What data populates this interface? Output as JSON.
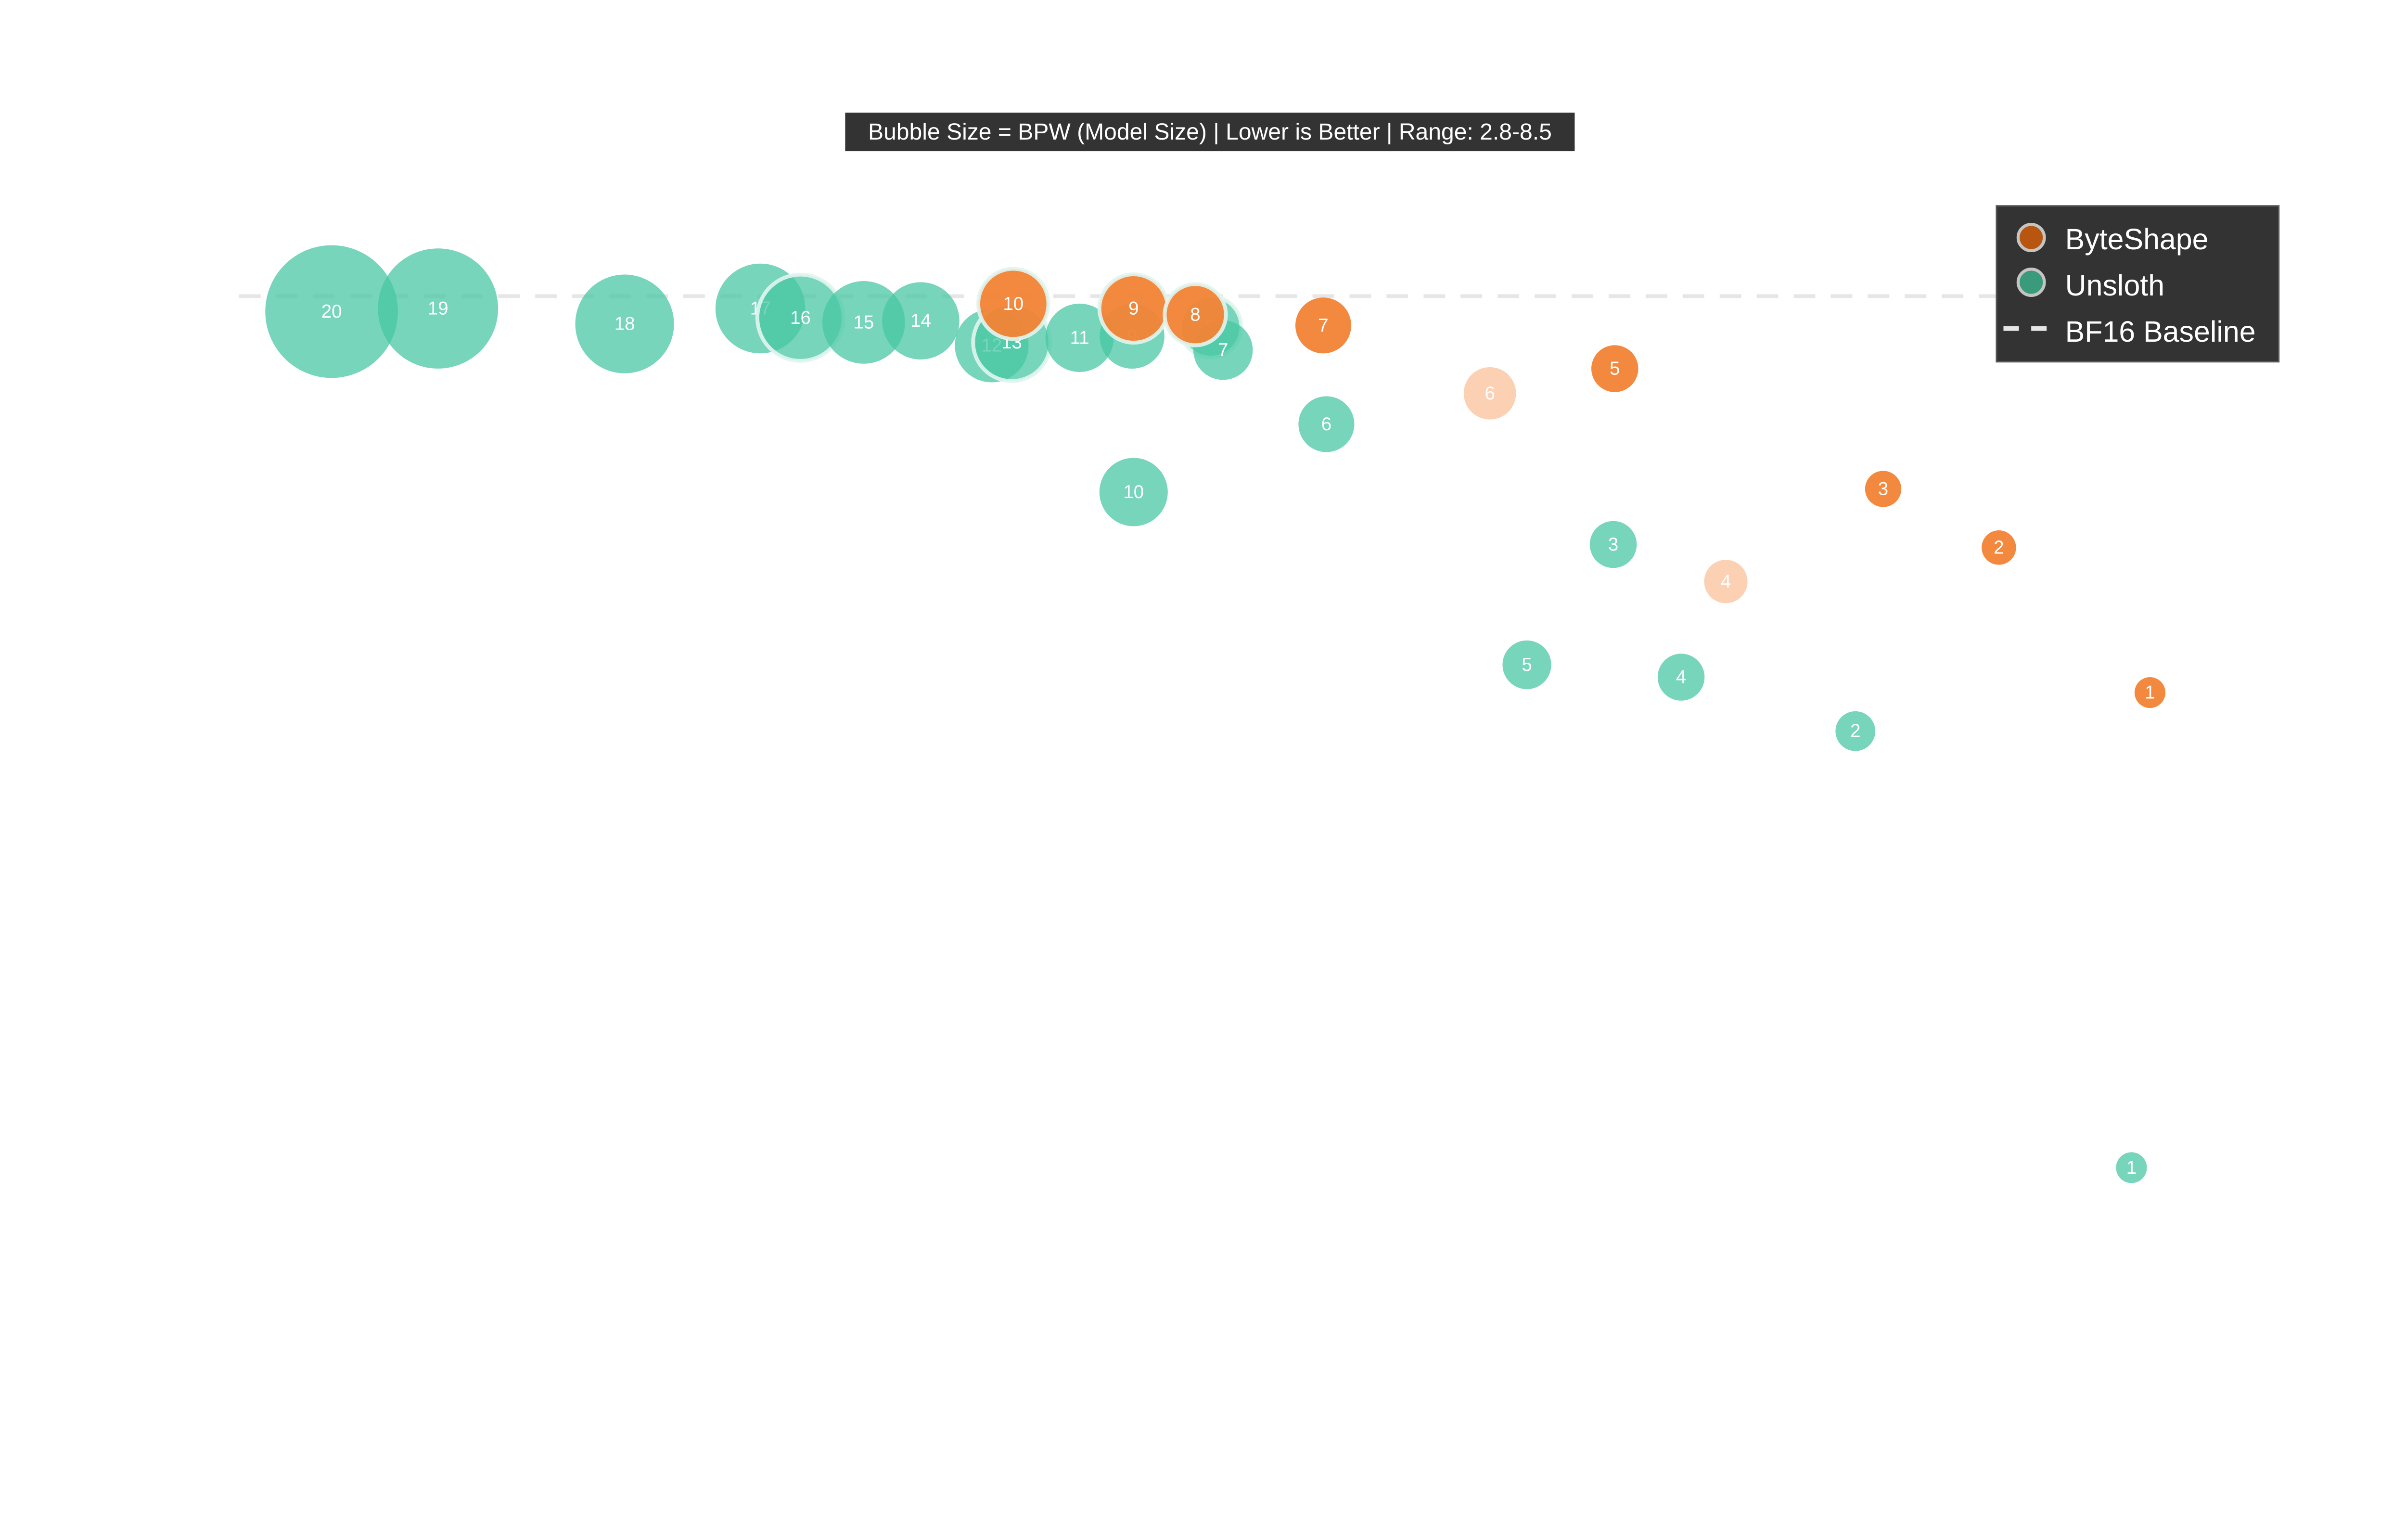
{
  "chart_data": {
    "type": "scatter",
    "subtitle": "Bubble Size = BPW (Model Size) | Lower is Better | Range: 2.8-8.5",
    "title": "",
    "xlabel": "",
    "ylabel": "",
    "xlim": [
      0,
      14
    ],
    "ylim": [
      0,
      8.8
    ],
    "grid": false,
    "axes_visible": false,
    "size_range": [
      2.8,
      8.5
    ],
    "legend": {
      "placement": "top-right",
      "background": "#333333",
      "entries": [
        "ByteShape",
        "Unsloth",
        "BF16 Baseline"
      ]
    },
    "baseline": {
      "name": "BF16 Baseline",
      "y": 6.88,
      "color": "#e6e6e6",
      "style": "dashed"
    },
    "series": [
      {
        "name": "Unsloth",
        "color": "#48c7a3",
        "legend_color": "#3a9a7c",
        "points": [
          {
            "label": "20",
            "x": 0.6,
            "y": 6.78,
            "bpw": 8.5
          },
          {
            "label": "19",
            "x": 1.29,
            "y": 6.8,
            "bpw": 7.8
          },
          {
            "label": "18",
            "x": 2.5,
            "y": 6.7,
            "bpw": 6.6
          },
          {
            "label": "17",
            "x": 3.38,
            "y": 6.8,
            "bpw": 6.1
          },
          {
            "label": "16",
            "x": 3.64,
            "y": 6.74,
            "bpw": 5.9,
            "highlight": true
          },
          {
            "label": "15",
            "x": 4.05,
            "y": 6.71,
            "bpw": 5.7
          },
          {
            "label": "14",
            "x": 4.42,
            "y": 6.72,
            "bpw": 5.4
          },
          {
            "label": "12",
            "x": 4.88,
            "y": 6.56,
            "bpw": 5.2
          },
          {
            "label": "13",
            "x": 5.01,
            "y": 6.58,
            "bpw": 5.4,
            "highlight": true
          },
          {
            "label": "11",
            "x": 5.45,
            "y": 6.61,
            "bpw": 4.9
          },
          {
            "label": "10",
            "x": 5.8,
            "y": 5.61,
            "bpw": 4.9
          },
          {
            "label": "9",
            "x": 5.79,
            "y": 6.62,
            "bpw": 4.7
          },
          {
            "label": "8",
            "x": 6.3,
            "y": 6.68,
            "bpw": 4.5,
            "highlight": true
          },
          {
            "label": "7",
            "x": 6.38,
            "y": 6.53,
            "bpw": 4.4
          },
          {
            "label": "6",
            "x": 7.05,
            "y": 6.05,
            "bpw": 4.2
          },
          {
            "label": "5",
            "x": 8.35,
            "y": 4.49,
            "bpw": 3.8
          },
          {
            "label": "4",
            "x": 9.35,
            "y": 4.41,
            "bpw": 3.7
          },
          {
            "label": "3",
            "x": 8.91,
            "y": 5.27,
            "bpw": 3.7
          },
          {
            "label": "2",
            "x": 10.48,
            "y": 4.06,
            "bpw": 3.3
          },
          {
            "label": "1",
            "x": 12.27,
            "y": 1.23,
            "bpw": 2.8
          }
        ]
      },
      {
        "name": "ByteShape",
        "color": "#f28335",
        "faded_color": "#fbd0b3",
        "legend_color": "#b8560f",
        "points": [
          {
            "label": "10",
            "x": 5.02,
            "y": 6.83,
            "bpw": 5.0,
            "highlight": true
          },
          {
            "label": "9",
            "x": 5.8,
            "y": 6.8,
            "bpw": 4.9,
            "highlight": true
          },
          {
            "label": "8",
            "x": 6.2,
            "y": 6.76,
            "bpw": 4.5,
            "highlight": true
          },
          {
            "label": "7",
            "x": 7.03,
            "y": 6.69,
            "bpw": 4.2
          },
          {
            "label": "6",
            "x": 8.11,
            "y": 6.25,
            "bpw": 4.0,
            "faded": true
          },
          {
            "label": "5",
            "x": 8.92,
            "y": 6.41,
            "bpw": 3.7
          },
          {
            "label": "4",
            "x": 9.64,
            "y": 5.03,
            "bpw": 3.5,
            "faded": true
          },
          {
            "label": "3",
            "x": 10.66,
            "y": 5.63,
            "bpw": 3.1
          },
          {
            "label": "2",
            "x": 11.41,
            "y": 5.25,
            "bpw": 3.0
          },
          {
            "label": "1",
            "x": 12.39,
            "y": 4.31,
            "bpw": 2.8
          }
        ]
      }
    ]
  }
}
